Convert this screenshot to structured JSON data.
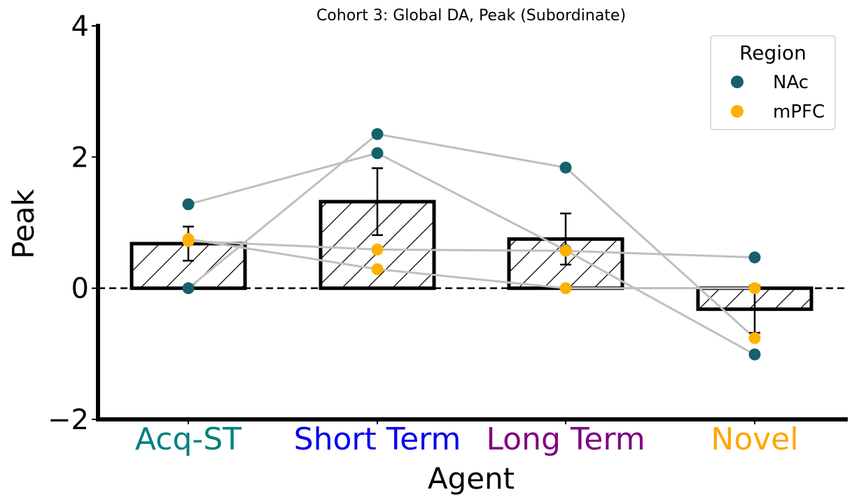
{
  "chart_data": {
    "type": "bar",
    "title": "Cohort 3: Global DA, Peak (Subordinate)",
    "xlabel": "Agent",
    "ylabel": "Peak",
    "ylim": [
      -2,
      4
    ],
    "yticks": [
      -2,
      0,
      2,
      4
    ],
    "yticklabels": [
      "−2",
      "0",
      "2",
      "4"
    ],
    "grid": false,
    "zero_line": {
      "style": "dashed",
      "value": 0
    },
    "categories": [
      "Acq-ST",
      "Short Term",
      "Long Term",
      "Novel"
    ],
    "category_colors": [
      "#008080",
      "#0000ee",
      "#800080",
      "#ffa500"
    ],
    "bars": {
      "values": [
        0.68,
        1.32,
        0.75,
        -0.32
      ],
      "error": [
        0.26,
        0.51,
        0.39,
        0.36
      ],
      "hatch": "diagonal",
      "fill": "#ffffff",
      "edge_color": "#000000"
    },
    "legend": {
      "title": "Region",
      "placement": "top-right",
      "entries": [
        {
          "name": "NAc",
          "color": "#17606e"
        },
        {
          "name": "mPFC",
          "color": "#ffb000"
        }
      ]
    },
    "series": [
      {
        "name": "NAc",
        "values": [
          1.28,
          2.06,
          1.84,
          -1.01
        ],
        "marker_color": "#17606e"
      },
      {
        "name": "NAc",
        "values": [
          0.0,
          2.35,
          0.58,
          0.47
        ],
        "marker_color": "#17606e"
      },
      {
        "name": "mPFC",
        "values": [
          0.72,
          0.59,
          0.57,
          -0.76
        ],
        "marker_color": "#ffb000"
      },
      {
        "name": "mPFC",
        "values": [
          0.75,
          0.29,
          0.0,
          0.0
        ],
        "marker_color": "#ffb000"
      }
    ],
    "subject_lines": [
      {
        "values": [
          1.28,
          2.06,
          0.58,
          -1.01
        ]
      },
      {
        "values": [
          0.0,
          2.35,
          1.84,
          -0.76
        ]
      },
      {
        "values": [
          0.72,
          0.59,
          0.57,
          0.47
        ]
      },
      {
        "values": [
          0.75,
          0.29,
          0.0,
          0.0
        ]
      }
    ],
    "subject_line_color": "#bfbfbf"
  }
}
